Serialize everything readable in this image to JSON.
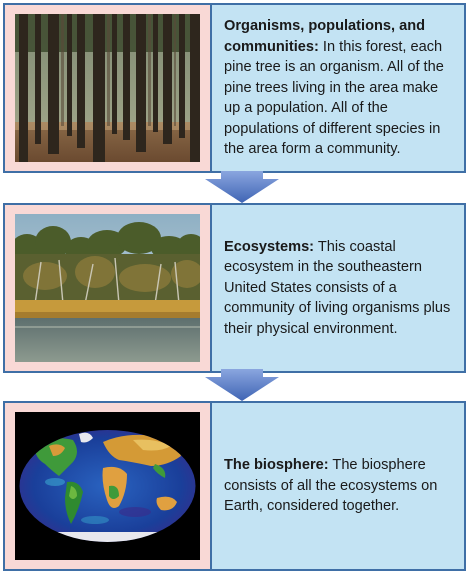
{
  "panels": [
    {
      "heading": "Organisms, populations, and communities:",
      "body": " In this forest, each pine tree is an organism. All of the pine trees living in the area make up a population. All of the populations of different species in the area form a community.",
      "image_subject": "pine forest"
    },
    {
      "heading": "Ecosystems:",
      "body": " This coastal ecosystem in the southeastern United States consists of a community of living organisms plus their physical environment.",
      "image_subject": "coastal marsh with trees"
    },
    {
      "heading": "The biosphere:",
      "body": " The biosphere consists of all the ecosystems on Earth, considered together.",
      "image_subject": "Earth map"
    }
  ],
  "colors": {
    "border": "#3f6fa6",
    "image_column": "#f9d9d6",
    "text_column": "#c3e3f3",
    "arrow": "#5b7fc8"
  }
}
